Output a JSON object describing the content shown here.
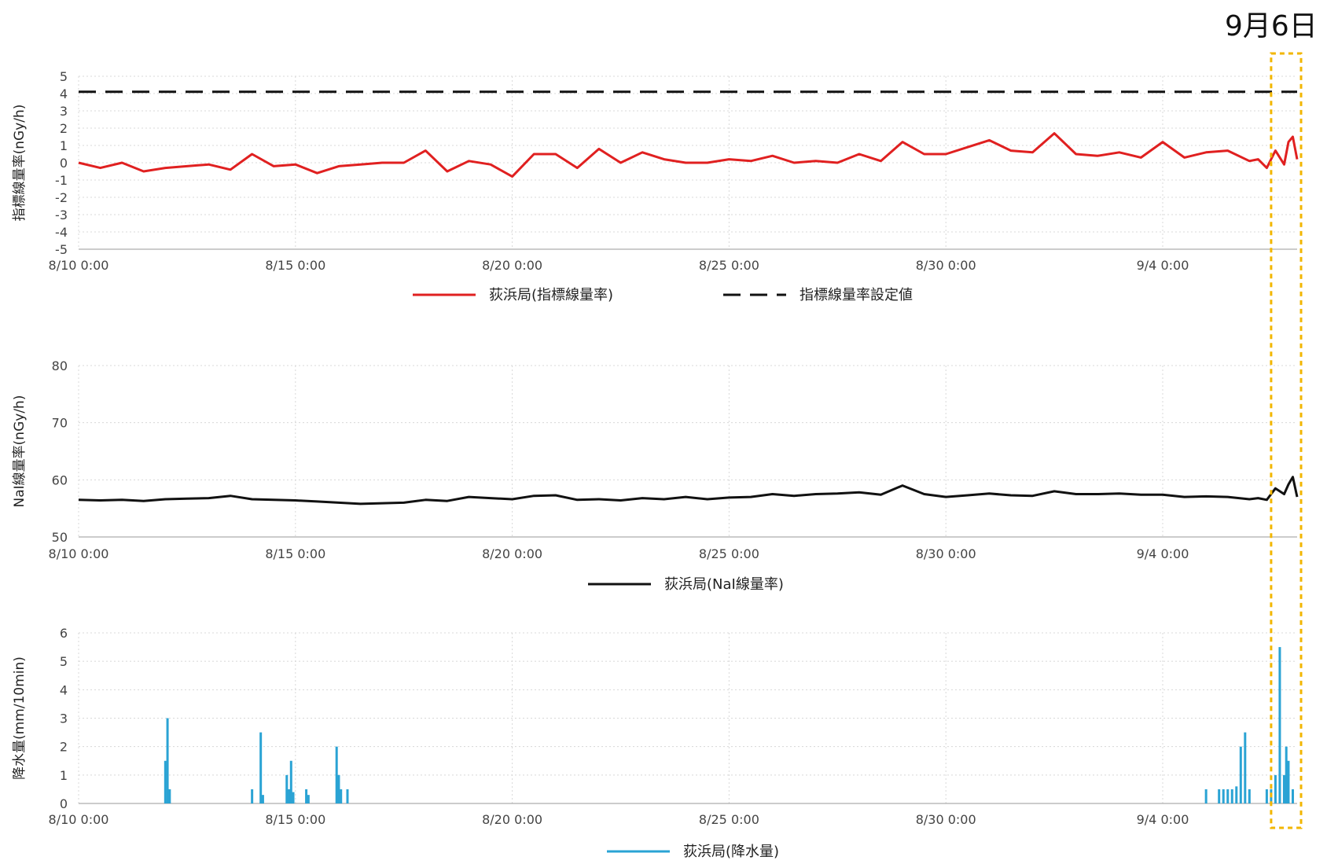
{
  "date_label": "9月6日",
  "highlight_color": "#f2b600",
  "chart_data": [
    {
      "type": "line",
      "ylabel": "指標線量率(nGy/h)",
      "ylim": [
        -5,
        5
      ],
      "yticks": [
        -5,
        -4,
        -3,
        -2,
        -1,
        0,
        1,
        2,
        3,
        4,
        5
      ],
      "xticks": [
        "8/10 0:00",
        "8/15 0:00",
        "8/20 0:00",
        "8/25 0:00",
        "8/30 0:00",
        "9/4 0:00"
      ],
      "x_range_days": [
        0,
        28.1
      ],
      "grid": true,
      "legend_position": "bottom-center",
      "series": [
        {
          "name": "荻浜局(指標線量率)",
          "color": "#e02020",
          "style": "solid",
          "x": [
            0,
            0.5,
            1,
            1.5,
            2,
            2.5,
            3,
            3.5,
            4,
            4.5,
            5,
            5.5,
            6,
            6.5,
            7,
            7.5,
            8,
            8.5,
            9,
            9.5,
            10,
            10.5,
            11,
            11.5,
            12,
            12.5,
            13,
            13.5,
            14,
            14.5,
            15,
            15.5,
            16,
            16.5,
            17,
            17.5,
            18,
            18.5,
            19,
            19.5,
            20,
            20.5,
            21,
            21.5,
            22,
            22.5,
            23,
            23.5,
            24,
            24.5,
            25,
            25.5,
            26,
            26.5,
            27,
            27.2,
            27.4,
            27.6,
            27.8,
            27.9,
            28,
            28.1
          ],
          "values": [
            0,
            -0.3,
            0,
            -0.5,
            -0.3,
            -0.2,
            -0.1,
            -0.4,
            0.5,
            -0.2,
            -0.1,
            -0.6,
            -0.2,
            -0.1,
            0,
            0,
            0.7,
            -0.5,
            0.1,
            -0.1,
            -0.8,
            0.5,
            0.5,
            -0.3,
            0.8,
            0,
            0.6,
            0.2,
            0,
            0,
            0.2,
            0.1,
            0.4,
            0,
            0.1,
            0,
            0.5,
            0.1,
            1.2,
            0.5,
            0.5,
            0.9,
            1.3,
            0.7,
            0.6,
            1.7,
            0.5,
            0.4,
            0.6,
            0.3,
            1.2,
            0.3,
            0.6,
            0.7,
            0.1,
            0.2,
            -0.3,
            0.7,
            -0.1,
            1.2,
            1.5,
            0.2
          ]
        },
        {
          "name": "指標線量率設定値",
          "color": "#111111",
          "style": "dashed",
          "x": [
            0,
            28.1
          ],
          "values": [
            4.1,
            4.1
          ]
        }
      ]
    },
    {
      "type": "line",
      "ylabel": "NaI線量率(nGy/h)",
      "ylim": [
        50,
        80
      ],
      "yticks": [
        50,
        60,
        70,
        80
      ],
      "xticks": [
        "8/10 0:00",
        "8/15 0:00",
        "8/20 0:00",
        "8/25 0:00",
        "8/30 0:00",
        "9/4 0:00"
      ],
      "x_range_days": [
        0,
        28.1
      ],
      "grid": true,
      "legend_position": "bottom-center",
      "series": [
        {
          "name": "荻浜局(NaI線量率)",
          "color": "#111111",
          "style": "solid",
          "x": [
            0,
            0.5,
            1,
            1.5,
            2,
            2.5,
            3,
            3.5,
            4,
            4.5,
            5,
            5.5,
            6,
            6.5,
            7,
            7.5,
            8,
            8.5,
            9,
            9.5,
            10,
            10.5,
            11,
            11.5,
            12,
            12.5,
            13,
            13.5,
            14,
            14.5,
            15,
            15.5,
            16,
            16.5,
            17,
            17.5,
            18,
            18.5,
            19,
            19.5,
            20,
            20.5,
            21,
            21.5,
            22,
            22.5,
            23,
            23.5,
            24,
            24.5,
            25,
            25.5,
            26,
            26.5,
            27,
            27.2,
            27.4,
            27.6,
            27.8,
            27.9,
            28,
            28.1
          ],
          "values": [
            56.5,
            56.4,
            56.5,
            56.3,
            56.6,
            56.7,
            56.8,
            57.2,
            56.6,
            56.5,
            56.4,
            56.2,
            56.0,
            55.8,
            55.9,
            56.0,
            56.5,
            56.3,
            57.0,
            56.8,
            56.6,
            57.2,
            57.3,
            56.5,
            56.6,
            56.4,
            56.8,
            56.6,
            57.0,
            56.6,
            56.9,
            57.0,
            57.5,
            57.2,
            57.5,
            57.6,
            57.8,
            57.4,
            59.0,
            57.5,
            57.0,
            57.3,
            57.6,
            57.3,
            57.2,
            58.0,
            57.5,
            57.5,
            57.6,
            57.4,
            57.4,
            57.0,
            57.1,
            57.0,
            56.6,
            56.8,
            56.5,
            58.5,
            57.5,
            59.2,
            60.5,
            57.0
          ]
        }
      ]
    },
    {
      "type": "bar",
      "ylabel": "降水量(mm/10min)",
      "ylim": [
        0,
        6
      ],
      "yticks": [
        0,
        1,
        2,
        3,
        4,
        5,
        6
      ],
      "xticks": [
        "8/10 0:00",
        "8/15 0:00",
        "8/20 0:00",
        "8/25 0:00",
        "8/30 0:00",
        "9/4 0:00"
      ],
      "x_range_days": [
        0,
        28.1
      ],
      "grid": true,
      "legend_position": "bottom-center",
      "series": [
        {
          "name": "荻浜局(降水量)",
          "color": "#2aa3d4",
          "x": [
            2.0,
            2.05,
            2.1,
            4.0,
            4.2,
            4.25,
            4.8,
            4.85,
            4.9,
            4.95,
            5.25,
            5.3,
            5.95,
            6.0,
            6.05,
            6.2,
            26.0,
            26.3,
            26.4,
            26.5,
            26.6,
            26.7,
            26.8,
            26.9,
            27.0,
            27.4,
            27.5,
            27.6,
            27.7,
            27.8,
            27.85,
            27.9,
            28.0
          ],
          "values": [
            1.5,
            3.0,
            0.5,
            0.5,
            2.5,
            0.3,
            1.0,
            0.5,
            1.5,
            0.4,
            0.5,
            0.3,
            2.0,
            1.0,
            0.5,
            0.5,
            0.5,
            0.5,
            0.5,
            0.5,
            0.5,
            0.6,
            2.0,
            2.5,
            0.5,
            0.5,
            0.5,
            1.0,
            5.5,
            1.0,
            2.0,
            1.5,
            0.5
          ]
        }
      ]
    }
  ]
}
